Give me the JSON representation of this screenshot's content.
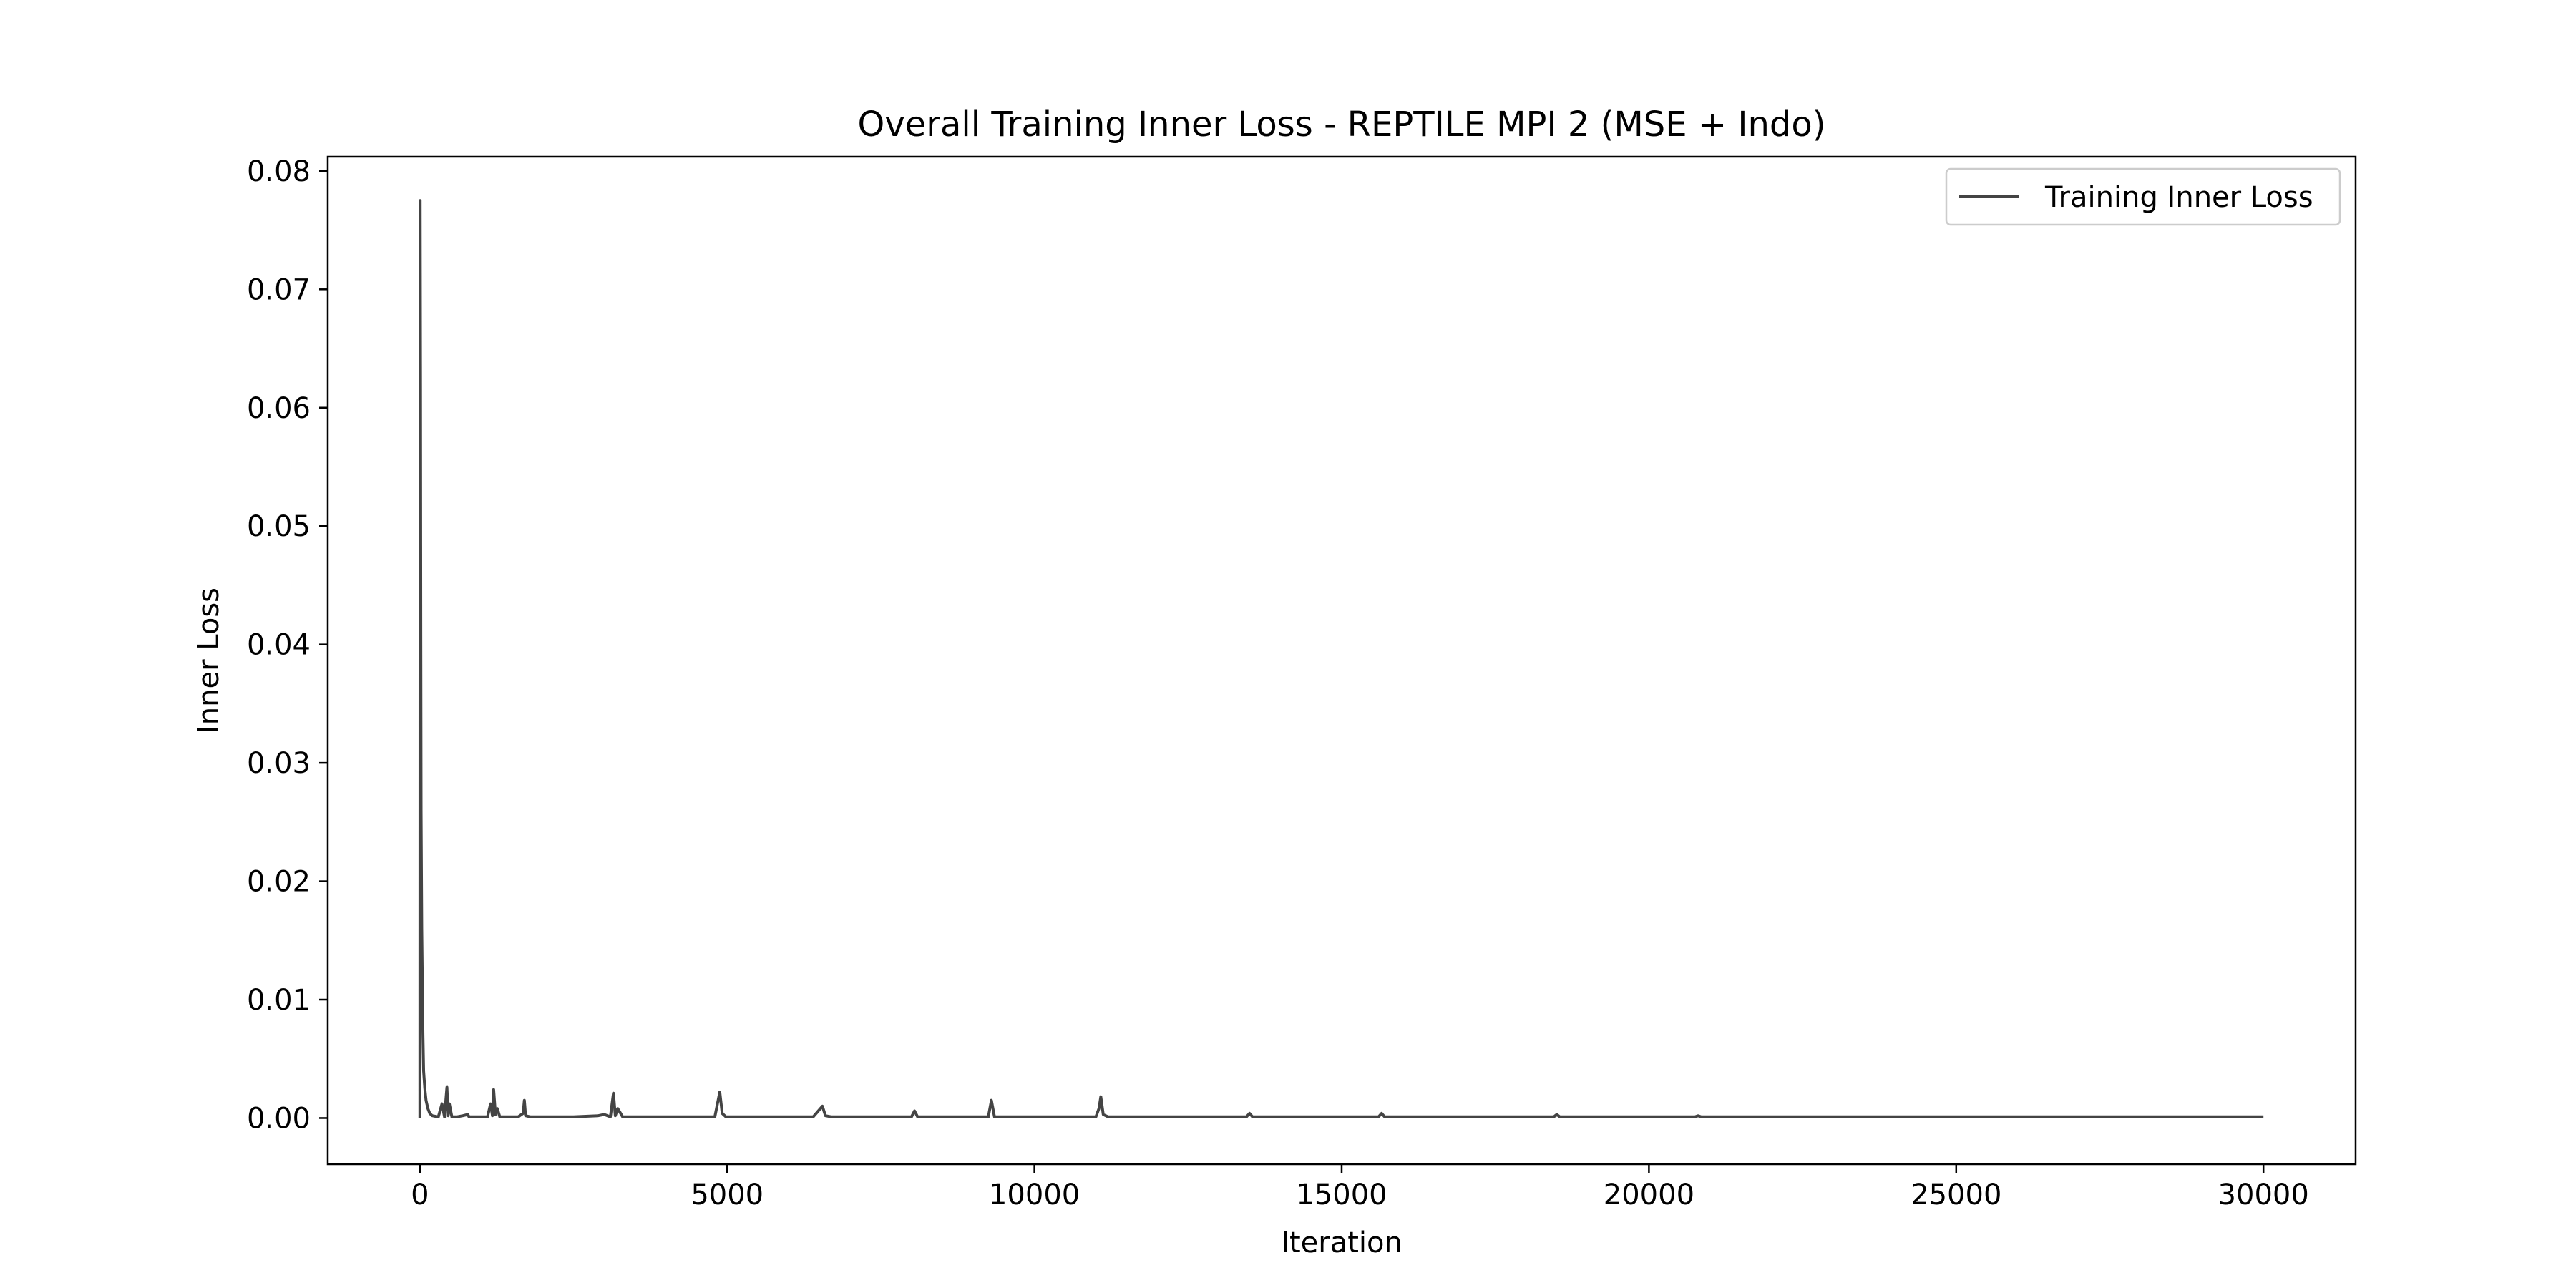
{
  "chart_data": {
    "type": "line",
    "title": "Overall Training Inner Loss - REPTILE MPI 2 (MSE + Indo)",
    "xlabel": "Iteration",
    "ylabel": "Inner Loss",
    "xlim": [
      -1500,
      31500
    ],
    "ylim": [
      -0.0039,
      0.0812
    ],
    "x_ticks": [
      0,
      5000,
      10000,
      15000,
      20000,
      25000,
      30000
    ],
    "x_tick_labels": [
      "0",
      "5000",
      "10000",
      "15000",
      "20000",
      "25000",
      "30000"
    ],
    "y_ticks": [
      0.0,
      0.01,
      0.02,
      0.03,
      0.04,
      0.05,
      0.06,
      0.07,
      0.08
    ],
    "y_tick_labels": [
      "0.00",
      "0.01",
      "0.02",
      "0.03",
      "0.04",
      "0.05",
      "0.06",
      "0.07",
      "0.08"
    ],
    "grid": false,
    "legend": {
      "position": "upper right"
    },
    "line_color": "#444444",
    "series": [
      {
        "name": "Training Inner Loss",
        "x": [
          0,
          5,
          10,
          15,
          20,
          30,
          40,
          50,
          60,
          80,
          100,
          130,
          160,
          200,
          250,
          300,
          360,
          400,
          440,
          460,
          480,
          520,
          600,
          700,
          780,
          800,
          900,
          1000,
          1100,
          1150,
          1180,
          1200,
          1230,
          1260,
          1300,
          1400,
          1500,
          1600,
          1680,
          1700,
          1720,
          1800,
          2000,
          2500,
          2900,
          3000,
          3100,
          3150,
          3180,
          3220,
          3300,
          4000,
          4800,
          4880,
          4920,
          4980,
          5100,
          6000,
          6400,
          6550,
          6600,
          6700,
          7000,
          8000,
          8050,
          8100,
          9000,
          9250,
          9300,
          9350,
          10000,
          11000,
          11050,
          11080,
          11120,
          11200,
          12000,
          13450,
          13500,
          13550,
          15600,
          15650,
          15700,
          17500,
          18450,
          18500,
          18550,
          20750,
          20800,
          20850,
          25000,
          30000
        ],
        "y": [
          0.0,
          0.0775,
          0.062,
          0.041,
          0.026,
          0.016,
          0.011,
          0.007,
          0.004,
          0.0025,
          0.0015,
          0.0008,
          0.0004,
          0.0002,
          0.00015,
          0.0001,
          0.0012,
          0.0001,
          0.0026,
          0.0002,
          0.0012,
          0.0001,
          0.0001,
          0.0002,
          0.0003,
          0.0001,
          0.0001,
          0.0001,
          0.0001,
          0.0012,
          0.0002,
          0.0024,
          0.0003,
          0.0008,
          0.0001,
          0.0001,
          0.0001,
          0.0001,
          0.0004,
          0.0015,
          0.0002,
          0.0001,
          0.0001,
          0.0001,
          0.0002,
          0.0003,
          0.0001,
          0.0021,
          0.0002,
          0.0008,
          0.0001,
          0.0001,
          0.0001,
          0.0022,
          0.0004,
          0.0001,
          0.0001,
          0.0001,
          0.0001,
          0.001,
          0.0002,
          0.0001,
          0.0001,
          0.0001,
          0.0006,
          0.0001,
          0.0001,
          0.0001,
          0.0015,
          0.0001,
          0.0001,
          0.0001,
          0.0008,
          0.0018,
          0.0003,
          0.0001,
          0.0001,
          0.0001,
          0.0004,
          0.0001,
          0.0001,
          0.0004,
          0.0001,
          0.0001,
          0.0001,
          0.0003,
          0.0001,
          0.0001,
          0.0002,
          0.0001,
          0.0001,
          0.0001
        ]
      }
    ]
  }
}
